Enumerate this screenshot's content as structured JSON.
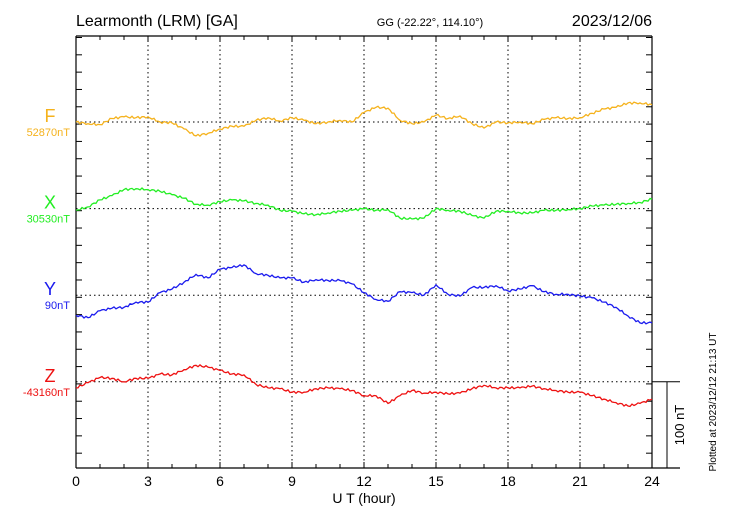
{
  "chart_data": {
    "type": "line",
    "title": "Learmonth (LRM)  [GA]",
    "coords": "GG (-22.22°, 114.10°)",
    "date": "2023/12/06",
    "xlabel": "U T (hour)",
    "xlim": [
      0,
      24
    ],
    "x_ticks": [
      "0",
      "3",
      "6",
      "9",
      "12",
      "15",
      "18",
      "21",
      "24"
    ],
    "scale_bar_label": "100 nT",
    "plotted_note": "Plotted at 2023/12/12 21:13 UT",
    "grid": true,
    "x": [
      0,
      0.5,
      1,
      1.5,
      2,
      2.5,
      3,
      3.5,
      4,
      4.5,
      5,
      5.5,
      6,
      6.5,
      7,
      7.5,
      8,
      8.5,
      9,
      9.5,
      10,
      10.5,
      11,
      11.5,
      12,
      12.5,
      13,
      13.5,
      14,
      14.5,
      15,
      15.5,
      16,
      16.5,
      17,
      17.5,
      18,
      18.5,
      19,
      19.5,
      20,
      20.5,
      21,
      21.5,
      22,
      22.5,
      23,
      23.5,
      24
    ],
    "series": [
      {
        "name": "F",
        "baseline_label": "52870nT",
        "baseline_nT": 52870,
        "color": "#f5b21c",
        "values": [
          0,
          -2,
          -3,
          4,
          6,
          5,
          6,
          0,
          -1,
          -8,
          -16,
          -13,
          -8,
          -5,
          -5,
          2,
          5,
          1,
          5,
          2,
          -2,
          0,
          2,
          0,
          11,
          17,
          16,
          2,
          -2,
          0,
          8,
          4,
          7,
          -2,
          -7,
          0,
          -1,
          0,
          -2,
          3,
          5,
          4,
          5,
          10,
          15,
          17,
          22,
          22,
          20
        ]
      },
      {
        "name": "X",
        "baseline_label": "30530nT",
        "baseline_nT": 30530,
        "color": "#22ee22",
        "values": [
          -2,
          2,
          10,
          15,
          22,
          23,
          22,
          20,
          16,
          12,
          5,
          4,
          8,
          10,
          9,
          6,
          4,
          -2,
          -3,
          -6,
          -7,
          -5,
          -3,
          -2,
          0,
          -2,
          -1,
          -11,
          -12,
          -11,
          0,
          -2,
          -3,
          -8,
          -11,
          -3,
          -3,
          -5,
          -5,
          -2,
          -2,
          -1,
          0,
          3,
          4,
          5,
          6,
          7,
          11
        ]
      },
      {
        "name": "Y",
        "baseline_label": "90nT",
        "baseline_nT": 90,
        "color": "#1a1aee",
        "values": [
          -23,
          -26,
          -18,
          -15,
          -14,
          -8,
          -8,
          3,
          7,
          15,
          24,
          20,
          30,
          32,
          35,
          25,
          23,
          20,
          20,
          15,
          18,
          17,
          17,
          13,
          3,
          -5,
          -7,
          4,
          3,
          0,
          12,
          1,
          -1,
          9,
          9,
          11,
          5,
          7,
          11,
          4,
          1,
          1,
          -1,
          -3,
          -8,
          -14,
          -24,
          -32,
          -32
        ]
      },
      {
        "name": "Z",
        "baseline_label": "-43160nT",
        "baseline_nT": -43160,
        "color": "#ee1111",
        "values": [
          -7,
          -1,
          5,
          4,
          0,
          4,
          4,
          9,
          8,
          14,
          19,
          17,
          13,
          9,
          8,
          -3,
          -7,
          -8,
          -12,
          -12,
          -8,
          -7,
          -8,
          -10,
          -16,
          -16,
          -25,
          -16,
          -10,
          -13,
          -12,
          -14,
          -13,
          -8,
          -4,
          -7,
          -7,
          -7,
          -5,
          -8,
          -10,
          -12,
          -12,
          -16,
          -20,
          -24,
          -28,
          -25,
          -20
        ]
      }
    ]
  }
}
